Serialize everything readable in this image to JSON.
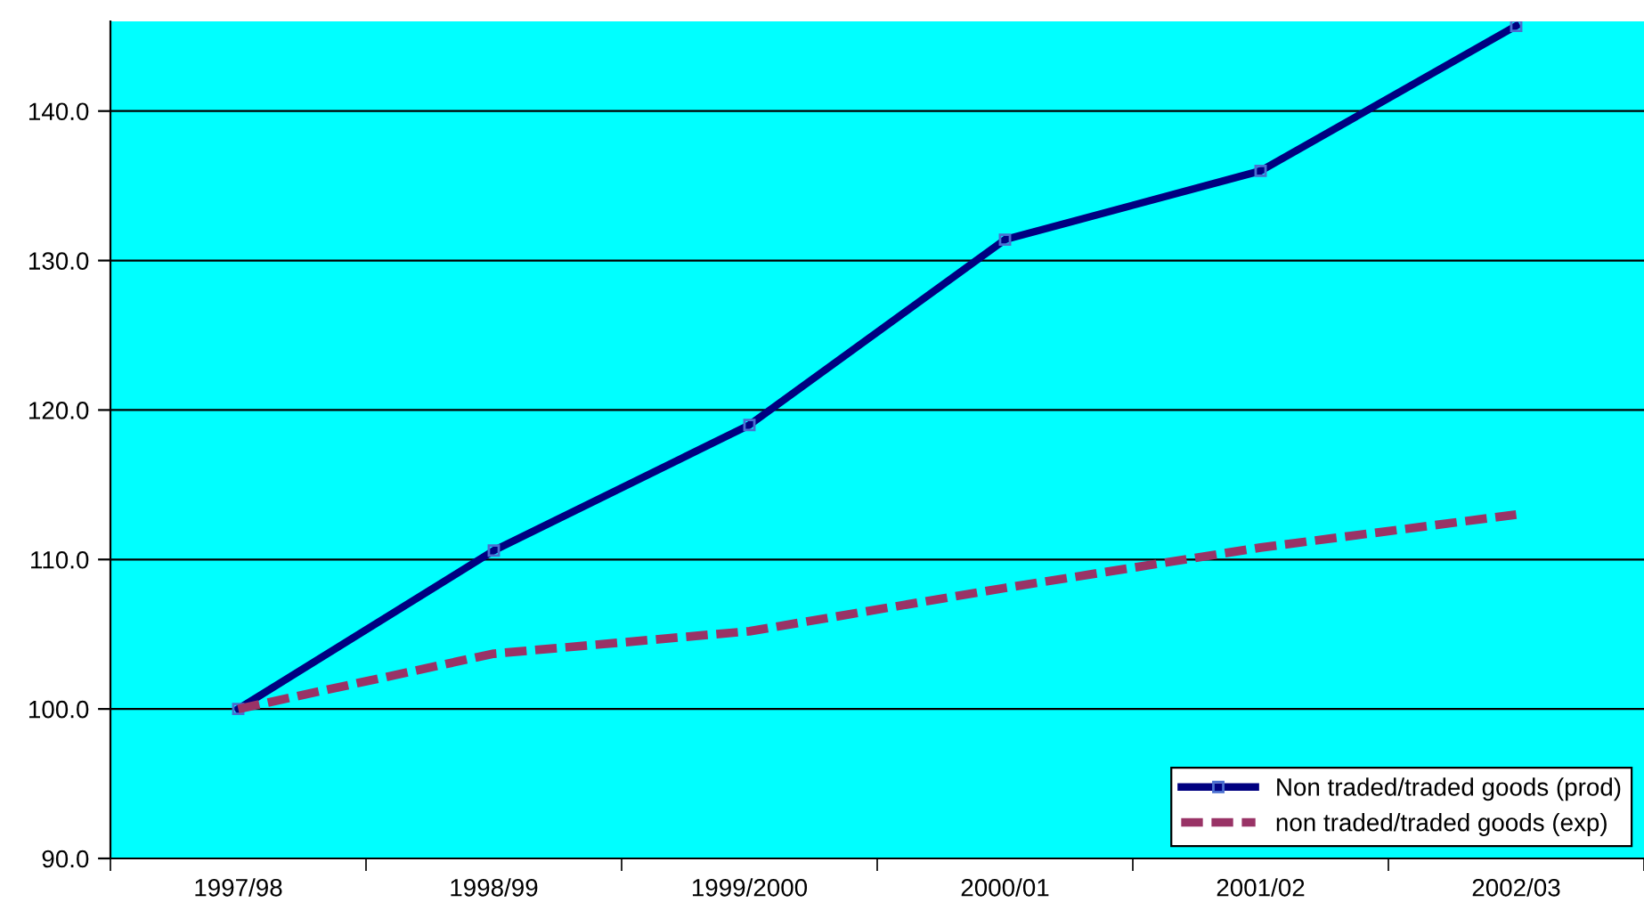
{
  "chart_data": {
    "type": "line",
    "categories": [
      "1997/98",
      "1998/99",
      "1999/2000",
      "2000/01",
      "2001/02",
      "2002/03"
    ],
    "series": [
      {
        "name": "Non traded/traded goods (prod)",
        "color": "#000080",
        "marker": "square",
        "line_style": "solid",
        "values": [
          100.0,
          110.6,
          119.0,
          131.4,
          136.0,
          145.7
        ]
      },
      {
        "name": "non traded/traded goods (exp)",
        "color": "#993366",
        "marker": "none",
        "line_style": "dashed",
        "values": [
          100.0,
          103.7,
          105.2,
          108.1,
          110.8,
          113.0
        ]
      }
    ],
    "ylim": [
      90,
      146
    ],
    "yticks": [
      {
        "value": 90,
        "label": "90.0"
      },
      {
        "value": 100,
        "label": "100.0"
      },
      {
        "value": 110,
        "label": "110.0"
      },
      {
        "value": 120,
        "label": "120.0"
      },
      {
        "value": 130,
        "label": "130.0"
      },
      {
        "value": 140,
        "label": "140.0"
      }
    ],
    "grid": "y",
    "legend": "bottom right"
  }
}
